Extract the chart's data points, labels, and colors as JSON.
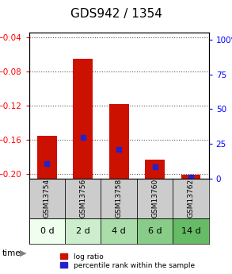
{
  "title": "GDS942 / 1354",
  "samples": [
    "GSM13754",
    "GSM13756",
    "GSM13758",
    "GSM13760",
    "GSM13762"
  ],
  "time_labels": [
    "0 d",
    "2 d",
    "4 d",
    "6 d",
    "14 d"
  ],
  "log_ratio": [
    -0.155,
    -0.065,
    -0.118,
    -0.183,
    -0.201
  ],
  "percentile_rank": [
    10,
    28,
    20,
    8,
    1
  ],
  "ylim_left": [
    -0.205,
    -0.035
  ],
  "ylim_right": [
    0,
    105
  ],
  "yticks_left": [
    -0.2,
    -0.16,
    -0.12,
    -0.08,
    -0.04
  ],
  "yticks_right": [
    0,
    25,
    50,
    75,
    100
  ],
  "yticklabels_right": [
    "0",
    "25",
    "50",
    "75",
    "100%"
  ],
  "bar_color": "#cc1100",
  "pct_color": "#2222cc",
  "grid_color": "#555555",
  "header_bg": "#cccccc",
  "time_bg_colors": [
    "#ddffdd",
    "#cceecc",
    "#aaddaa",
    "#99cc99",
    "#88bb88"
  ],
  "time_label_bg": "#88dd88",
  "bar_width": 0.55,
  "fig_width": 2.93,
  "fig_height": 3.45,
  "title_fontsize": 11,
  "tick_fontsize": 7.5,
  "sample_fontsize": 6.5,
  "time_fontsize": 8,
  "legend_fontsize": 6.5
}
